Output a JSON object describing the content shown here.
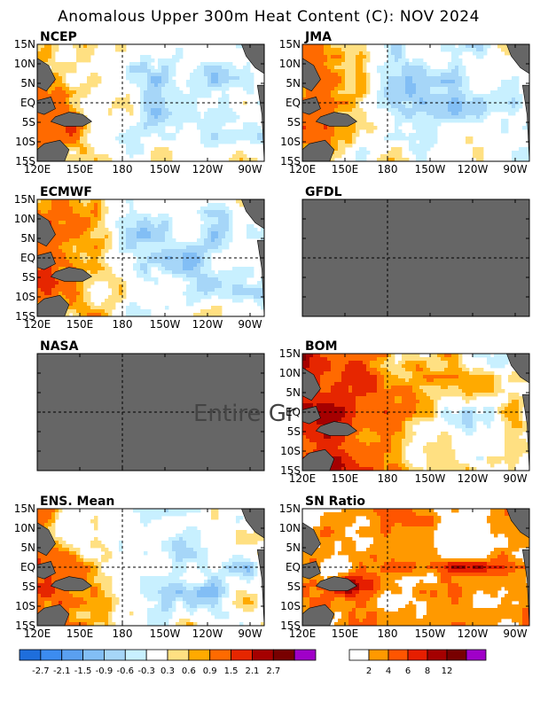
{
  "title": "Anomalous Upper 300m Heat Content (C): NOV 2024",
  "no_data_text": "Entire Grid",
  "lon_ticks": [
    "120E",
    "150E",
    "180",
    "150W",
    "120W",
    "90W"
  ],
  "lat_ticks": [
    "15N",
    "10N",
    "5N",
    "EQ",
    "5S",
    "10S",
    "15S"
  ],
  "colors": {
    "missing_fill": "#666666",
    "land_fill": "#666666",
    "dashed_line": "#000000",
    "frame": "#000000"
  },
  "chart_data": [
    {
      "type": "heatmap",
      "panel_label": "NCEP",
      "x_range": [
        "120E",
        "80W"
      ],
      "y_range": [
        "15S",
        "15N"
      ],
      "has_data": true,
      "pattern_summary": "warm anomalies (0.6–1.5+) over western Pacific 120E–160E; cool anomalies (-0.3 to -1.5) across central-eastern Pacific near equator and 150W–100W"
    },
    {
      "type": "heatmap",
      "panel_label": "JMA",
      "x_range": [
        "120E",
        "80W"
      ],
      "y_range": [
        "15S",
        "15N"
      ],
      "has_data": true,
      "pattern_summary": "warm anomalies over western Pacific; cool band along equator 150W–90W"
    },
    {
      "type": "heatmap",
      "panel_label": "ECMWF",
      "x_range": [
        "120E",
        "80W"
      ],
      "y_range": [
        "15S",
        "15N"
      ],
      "has_data": true,
      "pattern_summary": "warm west of 170E; weak cool anomalies central and eastern Pacific"
    },
    {
      "type": "heatmap",
      "panel_label": "GFDL",
      "x_range": [
        "120E",
        "80W"
      ],
      "y_range": [
        "15S",
        "15N"
      ],
      "has_data": false
    },
    {
      "type": "heatmap",
      "panel_label": "NASA",
      "x_range": [
        "120E",
        "80W"
      ],
      "y_range": [
        "15S",
        "15N"
      ],
      "has_data": false
    },
    {
      "type": "heatmap",
      "panel_label": "BOM",
      "x_range": [
        "120E",
        "80W"
      ],
      "y_range": [
        "15S",
        "15N"
      ],
      "has_data": true,
      "pattern_summary": "strong warm anomalies (0.9–2.7) west of 180; weak warm east with cool patch near equator 130W–100W"
    },
    {
      "type": "heatmap",
      "panel_label": "ENS. Mean",
      "x_range": [
        "120E",
        "80W"
      ],
      "y_range": [
        "15S",
        "15N"
      ],
      "has_data": true,
      "pattern_summary": "warm western Pacific 120E–170E; cool central-eastern Pacific"
    },
    {
      "type": "heatmap",
      "panel_label": "SN Ratio",
      "x_range": [
        "120E",
        "80W"
      ],
      "y_range": [
        "15S",
        "15N"
      ],
      "has_data": true,
      "pattern_summary": "signal-to-noise ratio mostly 2–6 in west; values 6–12+ along equator 160W–100W and near 5S 140E–170E"
    }
  ],
  "anomaly_colorbar": {
    "labels": [
      "-2.7",
      "-2.1",
      "-1.5",
      "-0.9",
      "-0.6",
      "-0.3",
      "0.3",
      "0.6",
      "0.9",
      "1.5",
      "2.1",
      "2.7"
    ],
    "colors": [
      "#1e6edc",
      "#3c8cf0",
      "#5aa0f0",
      "#82bef5",
      "#a6d6f8",
      "#c8f0ff",
      "#ffffff",
      "#ffe082",
      "#ffaa00",
      "#ff6a00",
      "#e62600",
      "#a50000",
      "#780000",
      "#a000c8"
    ]
  },
  "snr_colorbar": {
    "labels": [
      "2",
      "4",
      "6",
      "8",
      "12"
    ],
    "colors": [
      "#ffffff",
      "#ff9900",
      "#ff5500",
      "#e61e00",
      "#a50000",
      "#780000",
      "#a000c8"
    ]
  }
}
